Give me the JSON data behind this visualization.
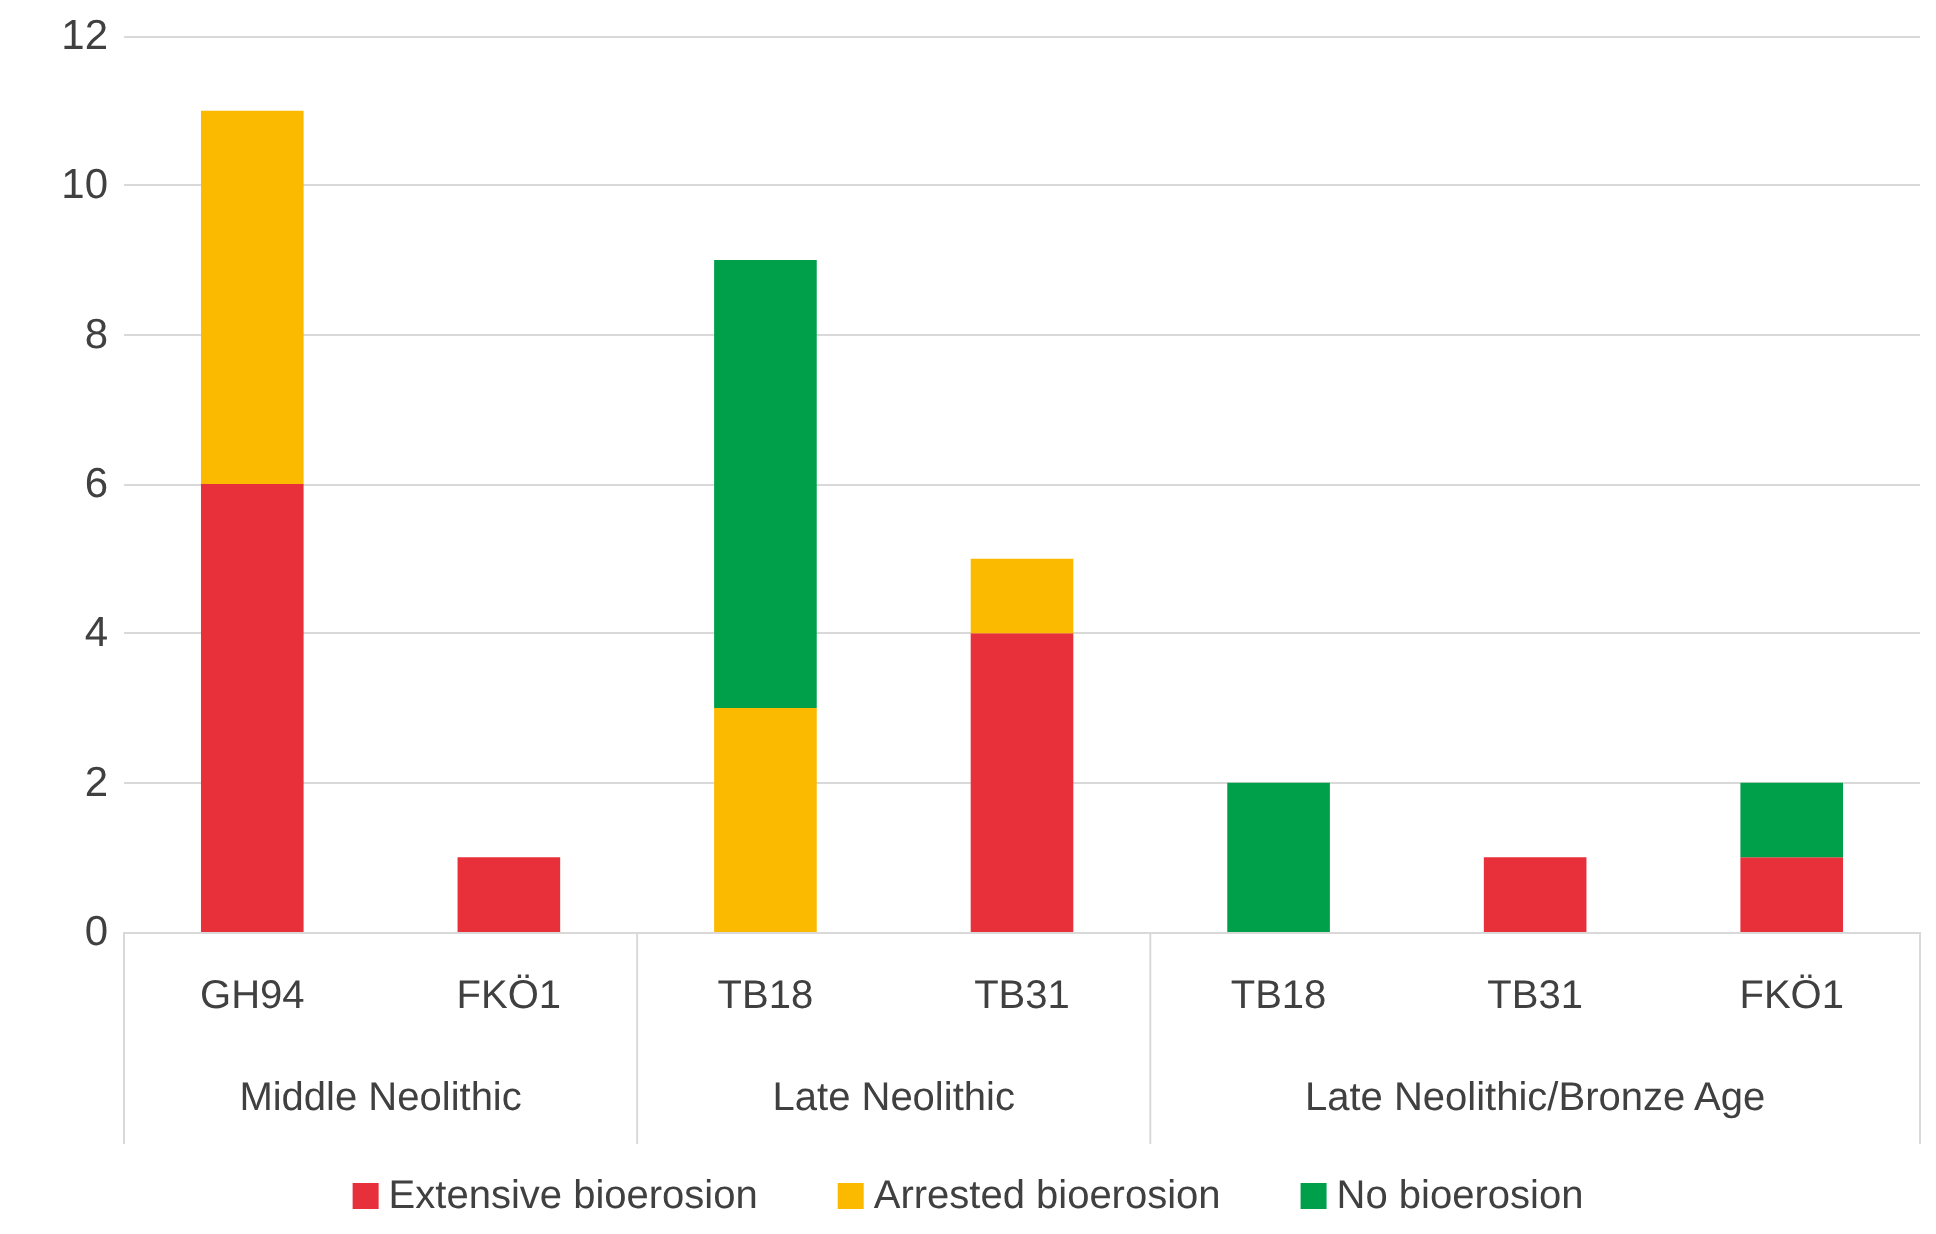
{
  "chart_data": {
    "type": "bar",
    "stacked": true,
    "categories": [
      "GH94",
      "FKÖ1",
      "TB18",
      "TB31",
      "TB18",
      "TB31",
      "FKÖ1"
    ],
    "series": [
      {
        "name": "Extensive bioerosion",
        "color": "#e8303a",
        "values": [
          6,
          1,
          0,
          4,
          0,
          1,
          1
        ]
      },
      {
        "name": "Arrested bioerosion",
        "color": "#fbb900",
        "values": [
          5,
          0,
          3,
          1,
          0,
          0,
          0
        ]
      },
      {
        "name": "No bioerosion",
        "color": "#00a04b",
        "values": [
          0,
          0,
          6,
          0,
          2,
          0,
          1
        ]
      }
    ],
    "ylim": [
      0,
      12
    ],
    "yticks": [
      0,
      2,
      4,
      6,
      8,
      10,
      12
    ],
    "grid": "y",
    "legend": "bottom",
    "annotations": [
      "Middle Neolithic",
      "Late Neolithic",
      "Late Neolithic/Bronze Age"
    ]
  }
}
